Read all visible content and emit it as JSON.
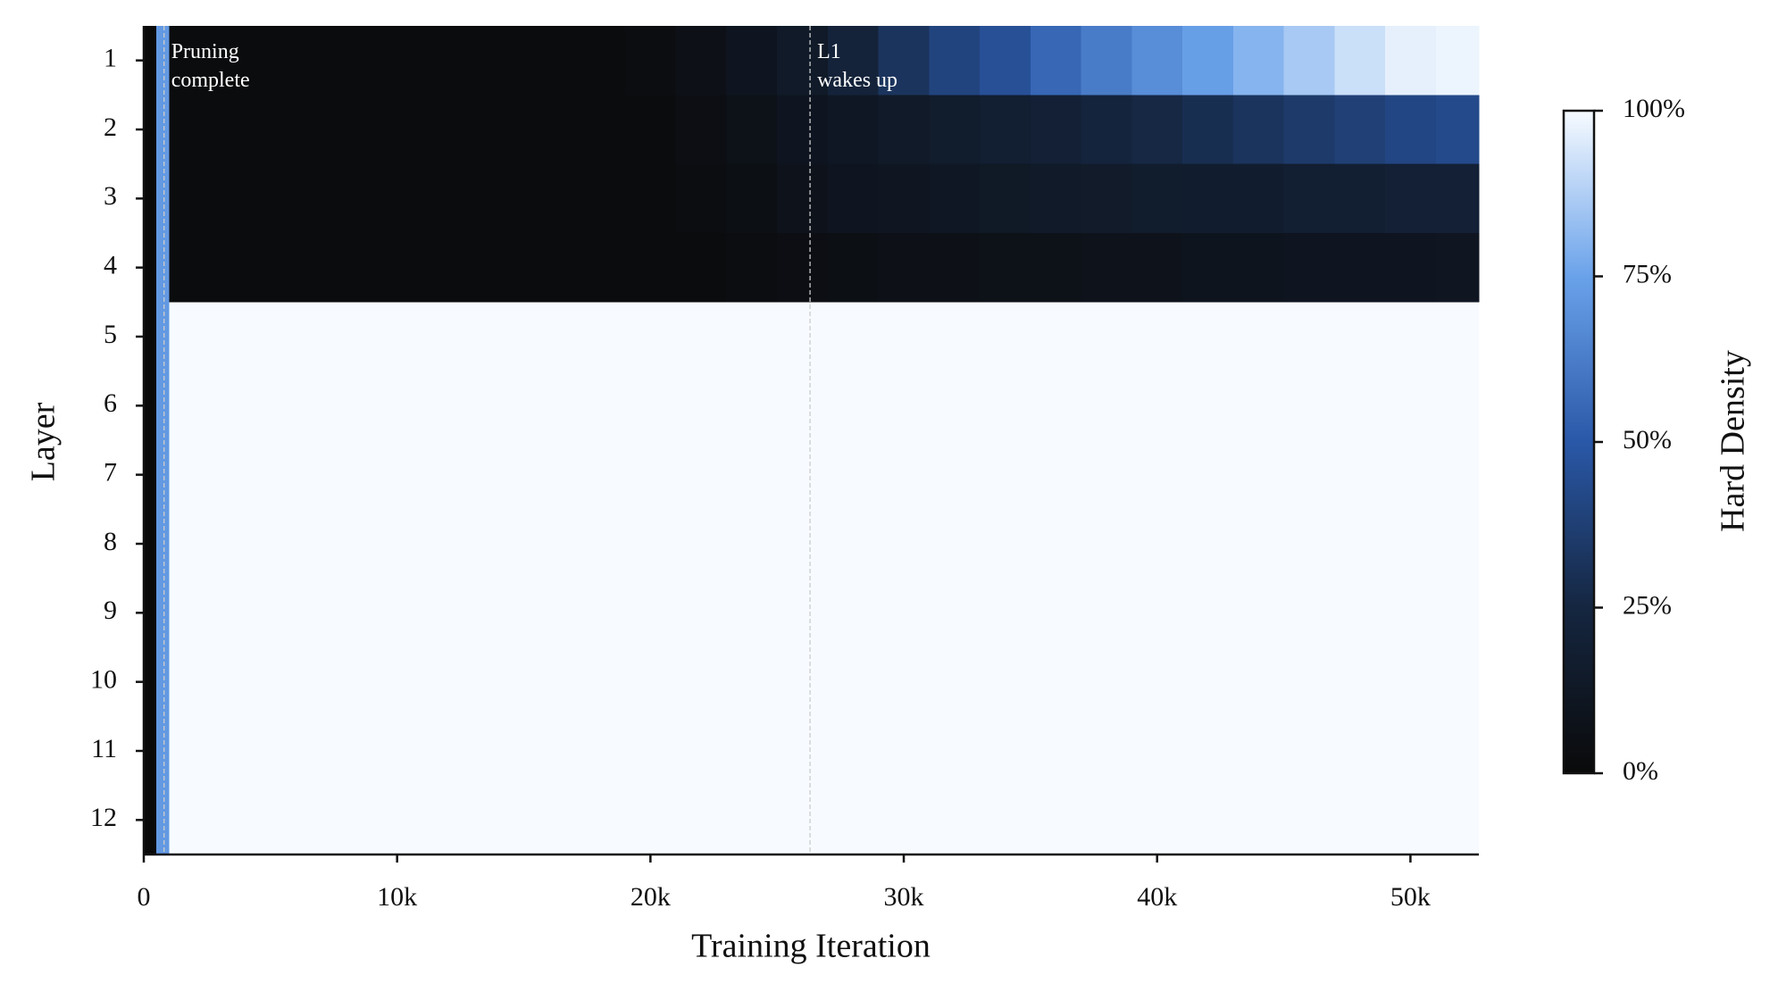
{
  "chart_data": {
    "type": "heatmap",
    "xlabel": "Training Iteration",
    "ylabel": "Layer",
    "colorbar_label": "Hard Density",
    "x_edges": [
      0,
      500,
      1000,
      3000,
      5000,
      7000,
      9000,
      11000,
      13000,
      15000,
      17000,
      19000,
      21000,
      23000,
      25000,
      27000,
      29000,
      31000,
      33000,
      35000,
      37000,
      39000,
      41000,
      43000,
      45000,
      47000,
      49000,
      51000,
      52700
    ],
    "xlim": [
      0,
      52700
    ],
    "xticks": [
      0,
      {
        "value": 10000,
        "label": "10k"
      },
      {
        "value": 20000,
        "label": "20k"
      },
      {
        "value": 30000,
        "label": "30k"
      },
      {
        "value": 40000,
        "label": "40k"
      },
      {
        "value": 50000,
        "label": "50k"
      }
    ],
    "y_categories": [
      1,
      2,
      3,
      4,
      5,
      6,
      7,
      8,
      9,
      10,
      11,
      12
    ],
    "z": [
      [
        0,
        72,
        2,
        2,
        2,
        2,
        2,
        2,
        2,
        2,
        2,
        3,
        6,
        10,
        14,
        22,
        32,
        40,
        46,
        55,
        62,
        68,
        74,
        80,
        86,
        92,
        97,
        98
      ],
      [
        0,
        72,
        2,
        2,
        2,
        2,
        2,
        2,
        2,
        2,
        2,
        2,
        4,
        7,
        10,
        12,
        14,
        16,
        18,
        20,
        23,
        26,
        29,
        32,
        35,
        38,
        41,
        43
      ],
      [
        0,
        72,
        2,
        2,
        2,
        2,
        2,
        2,
        2,
        2,
        2,
        2,
        3,
        5,
        8,
        10,
        11,
        12,
        13,
        14,
        15,
        16,
        17,
        17,
        18,
        19,
        20,
        20
      ],
      [
        0,
        72,
        2,
        2,
        2,
        2,
        2,
        2,
        2,
        2,
        2,
        2,
        2,
        3,
        4,
        5,
        6,
        6,
        7,
        7,
        8,
        8,
        9,
        9,
        10,
        10,
        10,
        11
      ],
      [
        0,
        72,
        100,
        100,
        100,
        100,
        100,
        100,
        100,
        100,
        100,
        100,
        100,
        100,
        100,
        100,
        100,
        100,
        100,
        100,
        100,
        100,
        100,
        100,
        100,
        100,
        100,
        100
      ],
      [
        0,
        72,
        100,
        100,
        100,
        100,
        100,
        100,
        100,
        100,
        100,
        100,
        100,
        100,
        100,
        100,
        100,
        100,
        100,
        100,
        100,
        100,
        100,
        100,
        100,
        100,
        100,
        100
      ],
      [
        0,
        72,
        100,
        100,
        100,
        100,
        100,
        100,
        100,
        100,
        100,
        100,
        100,
        100,
        100,
        100,
        100,
        100,
        100,
        100,
        100,
        100,
        100,
        100,
        100,
        100,
        100,
        100
      ],
      [
        0,
        72,
        100,
        100,
        100,
        100,
        100,
        100,
        100,
        100,
        100,
        100,
        100,
        100,
        100,
        100,
        100,
        100,
        100,
        100,
        100,
        100,
        100,
        100,
        100,
        100,
        100,
        100
      ],
      [
        0,
        72,
        100,
        100,
        100,
        100,
        100,
        100,
        100,
        100,
        100,
        100,
        100,
        100,
        100,
        100,
        100,
        100,
        100,
        100,
        100,
        100,
        100,
        100,
        100,
        100,
        100,
        100
      ],
      [
        0,
        72,
        100,
        100,
        100,
        100,
        100,
        100,
        100,
        100,
        100,
        100,
        100,
        100,
        100,
        100,
        100,
        100,
        100,
        100,
        100,
        100,
        100,
        100,
        100,
        100,
        100,
        100
      ],
      [
        0,
        72,
        100,
        100,
        100,
        100,
        100,
        100,
        100,
        100,
        100,
        100,
        100,
        100,
        100,
        100,
        100,
        100,
        100,
        100,
        100,
        100,
        100,
        100,
        100,
        100,
        100,
        100
      ],
      [
        0,
        72,
        100,
        100,
        100,
        100,
        100,
        100,
        100,
        100,
        100,
        100,
        100,
        100,
        100,
        100,
        100,
        100,
        100,
        100,
        100,
        100,
        100,
        100,
        100,
        100,
        100,
        100
      ]
    ],
    "clim": [
      0,
      100
    ],
    "cticks": [
      {
        "value": 0,
        "label": "0%"
      },
      {
        "value": 25,
        "label": "25%"
      },
      {
        "value": 50,
        "label": "50%"
      },
      {
        "value": 75,
        "label": "75%"
      },
      {
        "value": 100,
        "label": "100%"
      }
    ],
    "colorscale": [
      "#0a0a0a",
      "#152640",
      "#2a58a8",
      "#6aa2ea",
      "#f7fbff"
    ],
    "annotations": [
      {
        "x": 800,
        "text": [
          "Pruning",
          "complete"
        ]
      },
      {
        "x": 26300,
        "text": [
          "L1",
          "wakes up"
        ]
      }
    ]
  }
}
